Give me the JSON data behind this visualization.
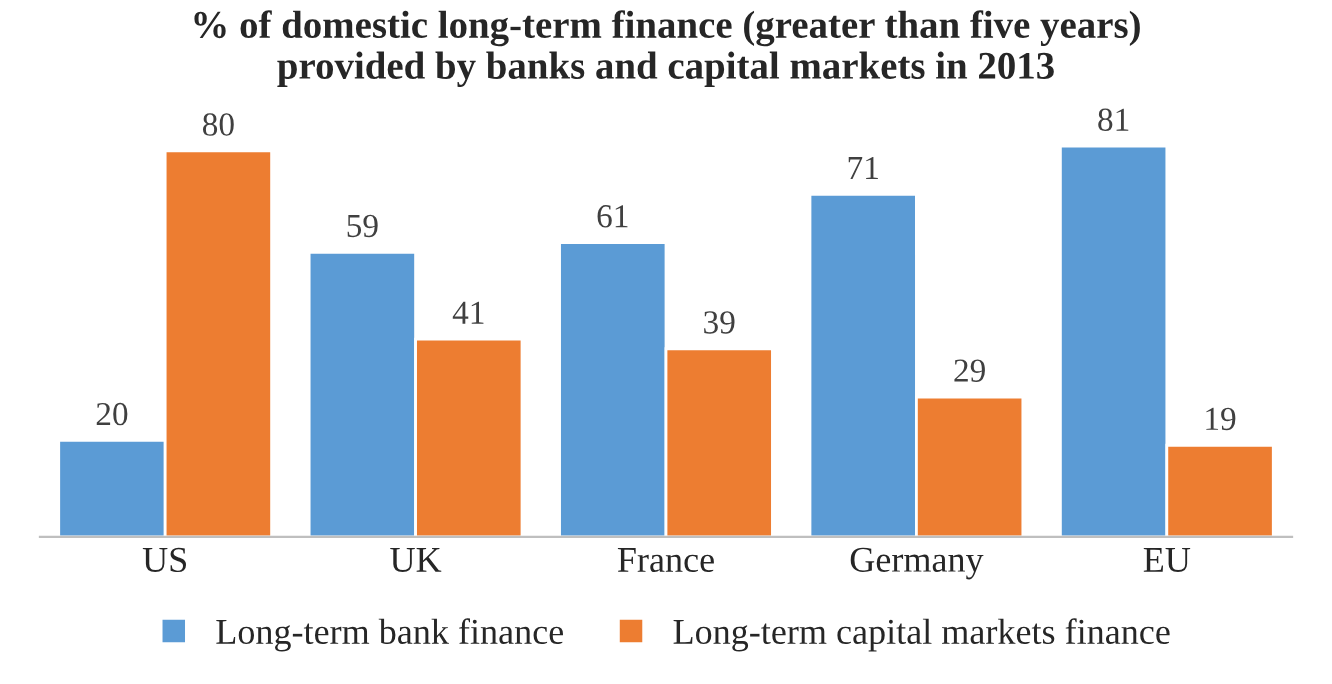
{
  "chart_data": {
    "type": "bar",
    "title": "% of domestic long-term finance (greater than five years)\nprovided by banks and capital markets in 2013",
    "categories": [
      "US",
      "UK",
      "France",
      "Germany",
      "EU"
    ],
    "series": [
      {
        "name": "Long-term bank finance",
        "color": "#5b9bd5",
        "values": [
          20,
          59,
          61,
          71,
          81
        ]
      },
      {
        "name": "Long-term capital markets finance",
        "color": "#ed7d31",
        "values": [
          80,
          41,
          39,
          29,
          19
        ]
      }
    ],
    "data_labels": true,
    "legend": "bottom",
    "grid": false,
    "tick_labels": "x"
  }
}
